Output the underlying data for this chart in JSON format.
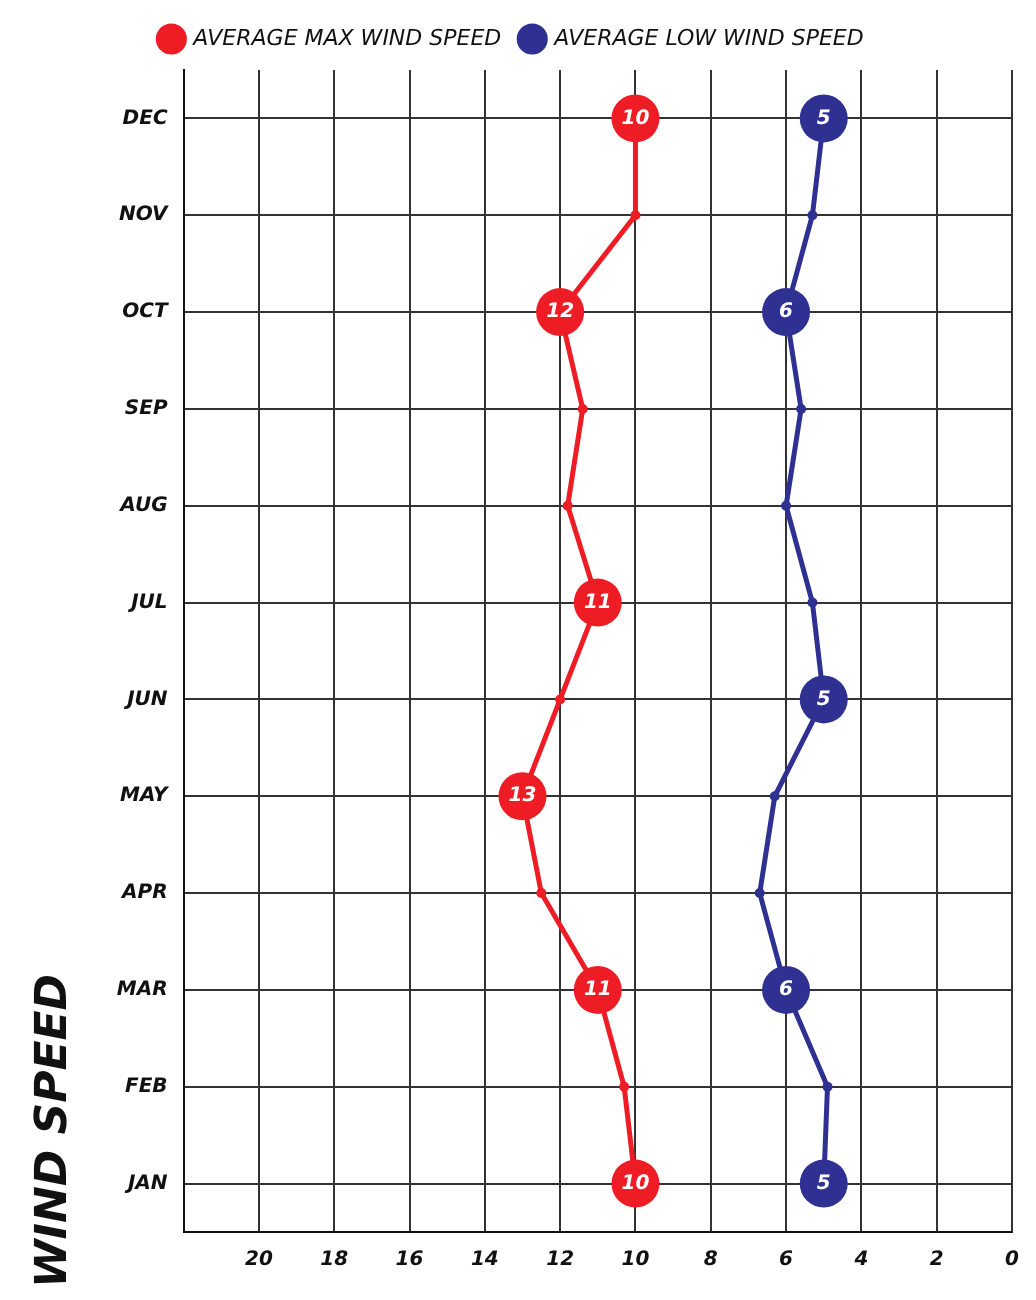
{
  "chart_data": {
    "type": "line",
    "title": "WIND SPEED",
    "orientation": "horizontal",
    "categories": [
      "DEC",
      "NOV",
      "OCT",
      "SEP",
      "AUG",
      "JUL",
      "JUN",
      "MAY",
      "APR",
      "MAR",
      "FEB",
      "JAN"
    ],
    "series": [
      {
        "name": "AVERAGE MAX WIND SPEED",
        "color": "#ee1c25",
        "values": [
          10,
          10,
          12,
          11.4,
          11.8,
          11,
          12,
          13,
          12.5,
          11,
          10.3,
          10
        ],
        "value_labels": [
          "10",
          null,
          "12",
          null,
          null,
          "11",
          null,
          "13",
          null,
          "11",
          null,
          "10"
        ]
      },
      {
        "name": "AVERAGE LOW WIND SPEED",
        "color": "#2e3192",
        "values": [
          5,
          5.3,
          6,
          5.6,
          6,
          5.3,
          5,
          6.3,
          6.7,
          6,
          4.9,
          5
        ],
        "value_labels": [
          "5",
          null,
          "6",
          null,
          null,
          null,
          "5",
          null,
          null,
          "6",
          null,
          "5"
        ]
      }
    ],
    "xlim": [
      22,
      0
    ],
    "xticks": [
      20,
      18,
      16,
      14,
      12,
      10,
      8,
      6,
      4,
      2,
      0
    ],
    "grid": true,
    "legend": "top",
    "marker": "circle",
    "line_style": "solid"
  }
}
